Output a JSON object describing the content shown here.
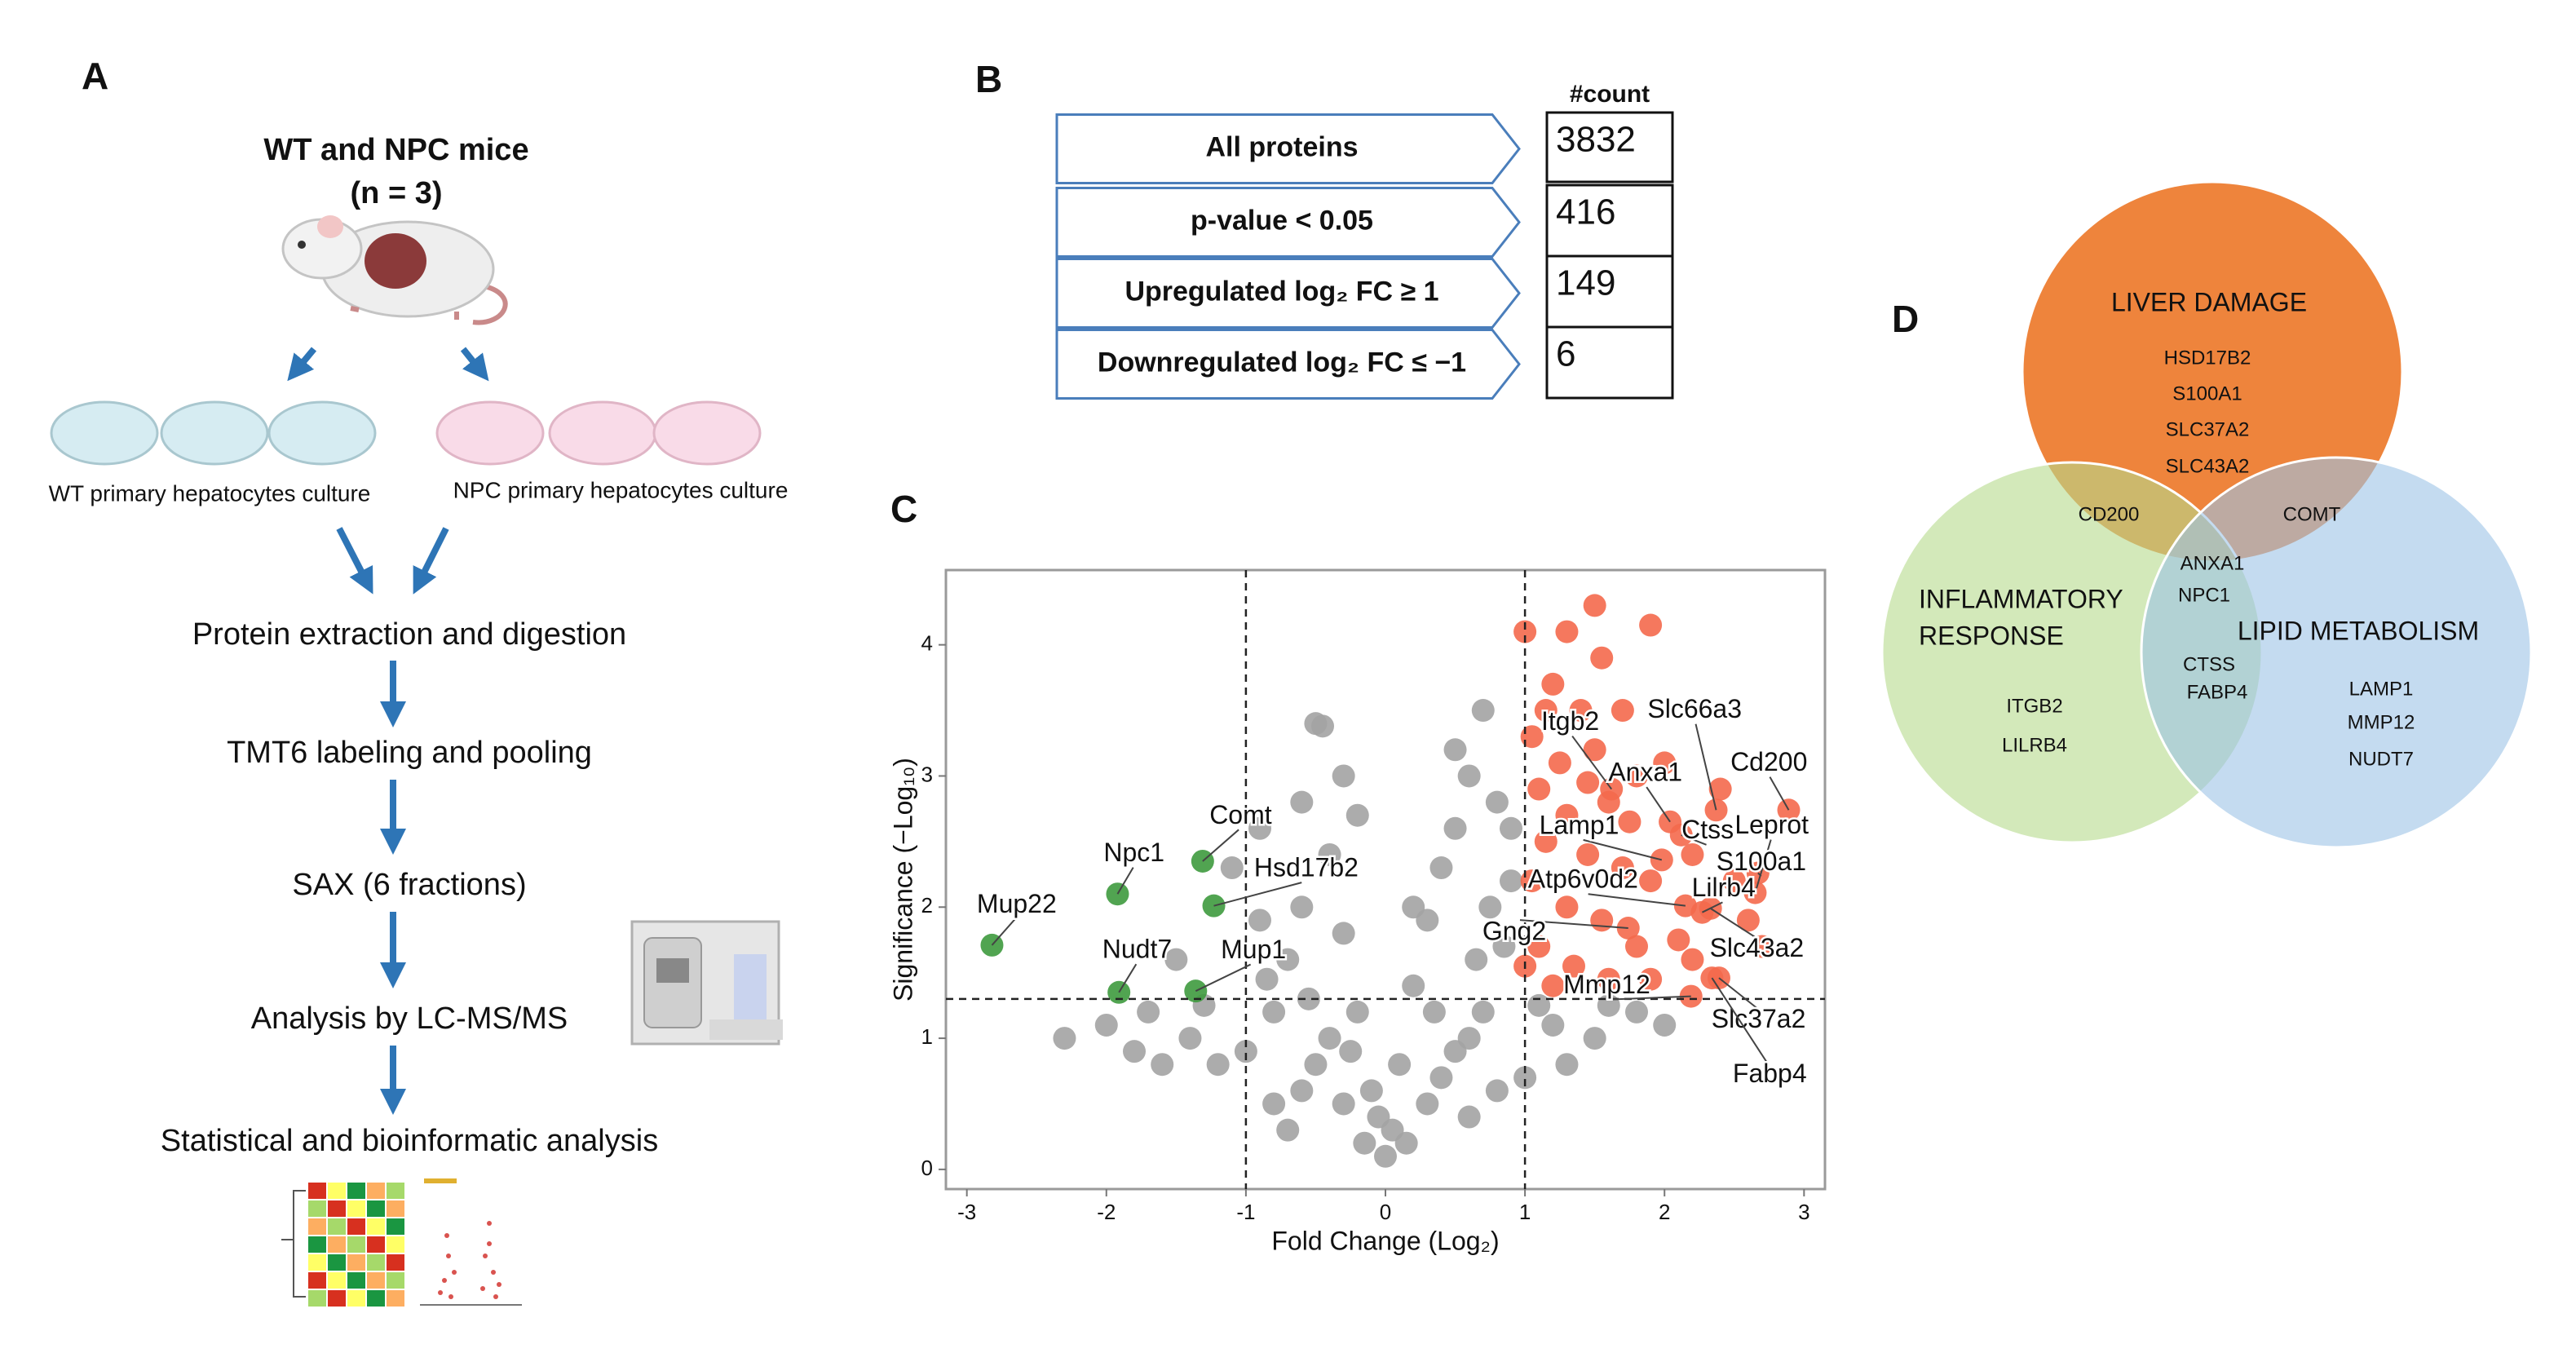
{
  "panels": {
    "A": {
      "label": "A",
      "title": "WT and NPC mice",
      "subtitle": "(n = 3)",
      "wt_culture": "WT primary hepatocytes culture",
      "npc_culture": "NPC primary hepatocytes culture",
      "steps": [
        "Protein extraction and digestion",
        "TMT6 labeling and pooling",
        "SAX (6 fractions)",
        "Analysis by LC-MS/MS",
        "Statistical and bioinformatic analysis"
      ]
    },
    "B": {
      "label": "B",
      "header": "#count",
      "rows": [
        {
          "label": "All proteins",
          "count": 3832
        },
        {
          "label": "p-value < 0.05",
          "count": 416
        },
        {
          "label": "Upregulated log₂ FC ≥ 1",
          "count": 149
        },
        {
          "label": "Downregulated log₂ FC ≤ −1",
          "count": 6
        }
      ]
    },
    "C": {
      "label": "C"
    },
    "D": {
      "label": "D",
      "sets": {
        "liver": {
          "label": "LIVER DAMAGE",
          "color": "#ed7d31",
          "genes": [
            "HSD17B2",
            "S100A1",
            "SLC37A2",
            "SLC43A2"
          ]
        },
        "inflammatory": {
          "label_lines": [
            "INFLAMMATORY",
            "RESPONSE"
          ],
          "color": "#b5db8c",
          "genes": [
            "ITGB2",
            "LILRB4"
          ]
        },
        "lipid": {
          "label": "LIPID METABOLISM",
          "color": "#9dc3e6",
          "genes": [
            "LAMP1",
            "MMP12",
            "NUDT7"
          ]
        }
      },
      "overlaps": {
        "liver_inflammatory": [
          "CD200"
        ],
        "liver_lipid": [
          "COMT"
        ],
        "all": [
          "ANXA1",
          "NPC1"
        ],
        "inflammatory_lipid": [
          "CTSS",
          "FABP4"
        ]
      }
    }
  },
  "chart_data": {
    "type": "scatter",
    "xlabel": "Fold Change (Log₂)",
    "ylabel": "Significance (−Log₁₀)",
    "xlim": [
      -3.15,
      3.15
    ],
    "ylim": [
      -0.15,
      4.57
    ],
    "xticks": [
      -3,
      -2,
      -1,
      0,
      1,
      2,
      3
    ],
    "yticks": [
      0,
      1,
      2,
      3,
      4
    ],
    "thresholds": {
      "x": [
        -1,
        1
      ],
      "y": 1.3
    },
    "series": [
      {
        "color": "#a3a3a3",
        "x": [
          -0.5,
          -0.45,
          -0.3,
          -0.6,
          -0.9,
          -1.1,
          -1.5,
          -1.7,
          -2.0,
          -1.8,
          -1.4,
          -1.2,
          -1.0,
          -0.8,
          -0.7,
          -0.6,
          -0.4,
          -0.3,
          -0.2,
          -0.1,
          0.0,
          0.05,
          -0.05,
          0.1,
          0.2,
          0.3,
          0.4,
          0.5,
          0.6,
          0.5,
          0.7,
          0.8,
          0.9,
          0.85,
          0.7,
          0.5,
          0.3,
          0.15,
          -0.15,
          -0.3,
          -0.5,
          -0.6,
          -0.8,
          -0.4,
          0.4,
          0.6,
          0.8,
          1.2,
          1.5,
          1.8,
          1.3,
          1.0,
          -1.6,
          2.0,
          1.1,
          -1.3,
          -0.9,
          0.9,
          -0.2,
          0.2,
          -0.7,
          0.6,
          1.6,
          -2.3,
          -0.25,
          0.35,
          -0.55,
          0.65,
          -0.85,
          0.75
        ],
        "values": [
          3.4,
          3.38,
          3.0,
          2.8,
          2.6,
          2.3,
          1.6,
          1.2,
          1.1,
          0.9,
          1.0,
          0.8,
          0.9,
          1.2,
          1.6,
          2.0,
          2.4,
          1.8,
          1.2,
          0.6,
          0.1,
          0.3,
          0.4,
          0.8,
          1.4,
          1.9,
          2.3,
          2.6,
          3.0,
          3.2,
          3.5,
          2.8,
          2.2,
          1.7,
          1.2,
          0.9,
          0.5,
          0.2,
          0.2,
          0.5,
          0.8,
          0.6,
          0.5,
          1.0,
          0.7,
          1.0,
          0.6,
          1.1,
          1.0,
          1.2,
          0.8,
          0.7,
          0.8,
          1.1,
          1.25,
          1.25,
          1.9,
          2.6,
          2.7,
          2.0,
          0.3,
          0.4,
          1.25,
          1.0,
          0.9,
          1.2,
          1.3,
          1.6,
          1.45,
          2.0
        ]
      },
      {
        "color": "#f4694d",
        "x": [
          1.0,
          1.3,
          1.5,
          1.55,
          1.9,
          1.2,
          1.4,
          1.7,
          1.05,
          1.25,
          1.5,
          1.8,
          2.0,
          1.1,
          1.3,
          1.6,
          1.15,
          1.45,
          1.7,
          1.9,
          1.05,
          1.3,
          1.55,
          1.8,
          2.1,
          1.1,
          1.35,
          1.6,
          1.9,
          2.2,
          1.2,
          2.5,
          2.6,
          2.7,
          1.45,
          2.2,
          1.0,
          1.75,
          2.4,
          1.15
        ],
        "values": [
          4.1,
          4.1,
          4.3,
          3.9,
          4.15,
          3.7,
          3.5,
          3.5,
          3.3,
          3.1,
          3.2,
          3.0,
          3.1,
          2.9,
          2.7,
          2.8,
          2.5,
          2.4,
          2.3,
          2.2,
          2.2,
          2.0,
          1.9,
          1.7,
          1.75,
          1.7,
          1.55,
          1.45,
          1.45,
          1.6,
          1.4,
          2.2,
          1.9,
          1.7,
          2.95,
          2.4,
          1.55,
          2.65,
          2.9,
          3.5
        ]
      },
      {
        "color": "#f4694d",
        "labels": [
          "Itgb2",
          "Slc66a3",
          "Anxa1",
          "Cd200",
          "Ctss",
          "Leprot",
          "Lamp1",
          "S100a1",
          "Atp6v0d2",
          "Lilrb4",
          "Gng2",
          "Slc43a2",
          "Mmp12",
          "Slc37a2",
          "Fabp4"
        ],
        "x": [
          1.62,
          2.37,
          2.04,
          2.89,
          2.12,
          2.65,
          1.98,
          2.67,
          2.15,
          2.27,
          1.74,
          2.33,
          2.19,
          2.39,
          2.34
        ],
        "values": [
          2.9,
          2.74,
          2.65,
          2.74,
          2.55,
          2.11,
          2.36,
          2.26,
          2.01,
          1.96,
          1.84,
          1.99,
          1.32,
          1.46,
          1.46
        ]
      },
      {
        "color": "#3e9a3e",
        "labels": [
          "Mup22",
          "Npc1",
          "Comt",
          "Hsd17b2",
          "Nudt7",
          "Mup1"
        ],
        "x": [
          -2.82,
          -1.92,
          -1.31,
          -1.23,
          -1.91,
          -1.36
        ],
        "values": [
          1.71,
          2.1,
          2.35,
          2.01,
          1.35,
          1.36
        ]
      }
    ]
  }
}
